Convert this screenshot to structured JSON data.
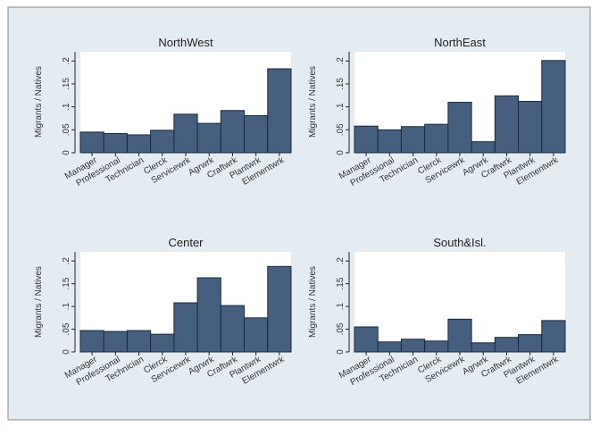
{
  "colors": {
    "page_background": "#ffffff",
    "figure_background": "#e5ecf1",
    "panel_background": "#ffffff",
    "bar_fill": "#475f7f",
    "bar_stroke": "#1a2a3f",
    "text": "#333333",
    "title": "#222222",
    "border": "#222222"
  },
  "chart_data": [
    {
      "type": "bar",
      "title": "NorthWest",
      "ylabel": "Migrants / Natives",
      "xlabel": "",
      "ylim": [
        0,
        0.22
      ],
      "yticks": [
        0,
        0.05,
        0.1,
        0.15,
        0.2
      ],
      "ytick_labels": [
        "0",
        ".05",
        ".1",
        ".15",
        ".2"
      ],
      "grid": false,
      "categories": [
        "Manager",
        "Professional",
        "Technician",
        "Clerck",
        "Servicewrk",
        "Agrwrk",
        "Craftwrk",
        "Plantwrk",
        "Elementwrk"
      ],
      "values": [
        0.045,
        0.042,
        0.039,
        0.049,
        0.084,
        0.064,
        0.092,
        0.081,
        0.183
      ]
    },
    {
      "type": "bar",
      "title": "NorthEast",
      "ylabel": "Migrants / Natives",
      "xlabel": "",
      "ylim": [
        0,
        0.22
      ],
      "yticks": [
        0,
        0.05,
        0.1,
        0.15,
        0.2
      ],
      "ytick_labels": [
        "0",
        ".05",
        ".1",
        ".15",
        ".2"
      ],
      "grid": false,
      "categories": [
        "Manager",
        "Professional",
        "Technician",
        "Clerck",
        "Servicewrk",
        "Agrwrk",
        "Craftwrk",
        "Plantwrk",
        "Elementwrk"
      ],
      "values": [
        0.058,
        0.05,
        0.057,
        0.062,
        0.11,
        0.024,
        0.124,
        0.112,
        0.201
      ]
    },
    {
      "type": "bar",
      "title": "Center",
      "ylabel": "Migrants / Natives",
      "xlabel": "",
      "ylim": [
        0,
        0.22
      ],
      "yticks": [
        0,
        0.05,
        0.1,
        0.15,
        0.2
      ],
      "ytick_labels": [
        "0",
        ".05",
        ".1",
        ".15",
        ".2"
      ],
      "grid": false,
      "categories": [
        "Manager",
        "Professional",
        "Technician",
        "Clerck",
        "Servicewrk",
        "Agrwrk",
        "Craftwrk",
        "Plantwrk",
        "Elementwrk"
      ],
      "values": [
        0.047,
        0.045,
        0.047,
        0.039,
        0.108,
        0.163,
        0.102,
        0.075,
        0.188
      ]
    },
    {
      "type": "bar",
      "title": "South&Isl.",
      "ylabel": "Migrants / Natives",
      "xlabel": "",
      "ylim": [
        0,
        0.22
      ],
      "yticks": [
        0,
        0.05,
        0.1,
        0.15,
        0.2
      ],
      "ytick_labels": [
        "0",
        ".05",
        ".1",
        ".15",
        ".2"
      ],
      "grid": false,
      "categories": [
        "Manager",
        "Professional",
        "Technician",
        "Clerck",
        "Servicewrk",
        "Agrwrk",
        "Craftwrk",
        "Plantwrk",
        "Elementwrk"
      ],
      "values": [
        0.055,
        0.022,
        0.028,
        0.024,
        0.072,
        0.02,
        0.032,
        0.038,
        0.069
      ]
    }
  ]
}
